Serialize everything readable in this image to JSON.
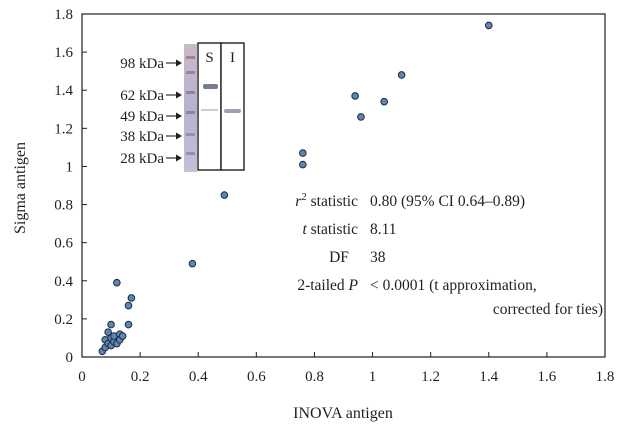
{
  "chart_data": {
    "type": "scatter",
    "title": "",
    "xlabel": "INOVA antigen",
    "ylabel": "Sigma antigen",
    "xlim": [
      0,
      1.8
    ],
    "ylim": [
      0,
      1.8
    ],
    "xticks": [
      "0",
      "0.2",
      "0.4",
      "0.6",
      "0.8",
      "1",
      "1.2",
      "1.4",
      "1.6",
      "1.8"
    ],
    "yticks": [
      "0",
      "0.2",
      "0.4",
      "0.6",
      "0.8",
      "1",
      "1.2",
      "1.4",
      "1.6",
      "1.8"
    ],
    "grid": false,
    "marker_color": "#5b86b7",
    "marker_edge_color": "#1e2a3a",
    "points": [
      {
        "x": 0.07,
        "y": 0.03
      },
      {
        "x": 0.08,
        "y": 0.05
      },
      {
        "x": 0.08,
        "y": 0.09
      },
      {
        "x": 0.09,
        "y": 0.07
      },
      {
        "x": 0.09,
        "y": 0.13
      },
      {
        "x": 0.1,
        "y": 0.06
      },
      {
        "x": 0.1,
        "y": 0.1
      },
      {
        "x": 0.1,
        "y": 0.17
      },
      {
        "x": 0.11,
        "y": 0.08
      },
      {
        "x": 0.11,
        "y": 0.11
      },
      {
        "x": 0.12,
        "y": 0.07
      },
      {
        "x": 0.12,
        "y": 0.39
      },
      {
        "x": 0.13,
        "y": 0.12
      },
      {
        "x": 0.13,
        "y": 0.09
      },
      {
        "x": 0.14,
        "y": 0.11
      },
      {
        "x": 0.16,
        "y": 0.17
      },
      {
        "x": 0.16,
        "y": 0.27
      },
      {
        "x": 0.17,
        "y": 0.31
      },
      {
        "x": 0.38,
        "y": 0.49
      },
      {
        "x": 0.49,
        "y": 0.85
      },
      {
        "x": 0.76,
        "y": 1.01
      },
      {
        "x": 0.76,
        "y": 1.07
      },
      {
        "x": 0.94,
        "y": 1.37
      },
      {
        "x": 0.96,
        "y": 1.26
      },
      {
        "x": 1.04,
        "y": 1.34
      },
      {
        "x": 1.1,
        "y": 1.48
      },
      {
        "x": 1.4,
        "y": 1.74
      }
    ],
    "stats": [
      {
        "label_main": "r",
        "label_sup": "2",
        "label_rest": " statistic",
        "value_lines": [
          "0.80 (95% CI 0.64–0.89)"
        ]
      },
      {
        "label_main": "t",
        "label_sup": "",
        "label_rest": " statistic",
        "value_lines": [
          "8.11"
        ]
      },
      {
        "label_main": "DF",
        "label_sup": "",
        "label_rest": "",
        "value_lines": [
          "38"
        ]
      },
      {
        "label_main": "2-tailed ",
        "label_sup": "",
        "label_rest": "P",
        "value_lines": [
          "< 0.0001 (t approximation,",
          "corrected for ties)"
        ]
      }
    ],
    "inset_blot": {
      "lane_labels": [
        "S",
        "I"
      ],
      "markers": [
        "98 kDa",
        "62 kDa",
        "49 kDa",
        "38 kDa",
        "28 kDa"
      ]
    }
  }
}
